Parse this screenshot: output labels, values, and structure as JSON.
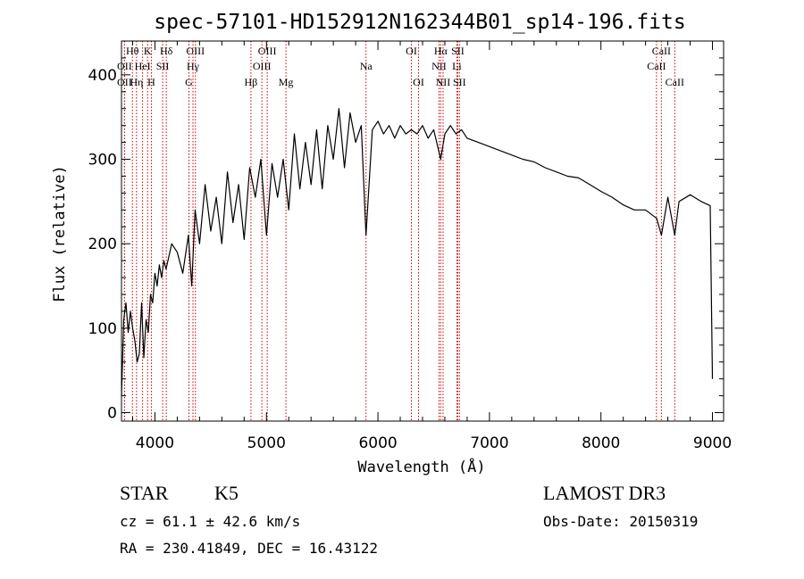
{
  "title": "spec-57101-HD152912N162344B01_sp14-196.fits",
  "info": {
    "class": "STAR",
    "subclass": "K5",
    "survey": "LAMOST DR3",
    "cz": "cz = 61.1 ± 42.6 km/s",
    "obsdate": "Obs-Date: 20150319",
    "radec": "RA = 230.41849, DEC =  16.43122"
  },
  "chart_data": {
    "type": "line",
    "title": "spec-57101-HD152912N162344B01_sp14-196.fits",
    "xlabel": "Wavelength (Å)",
    "ylabel": "Flux (relative)",
    "xlim": [
      3700,
      9100
    ],
    "ylim": [
      -10,
      440
    ],
    "xticks": [
      "4000",
      "5000",
      "6000",
      "7000",
      "8000",
      "9000"
    ],
    "yticks": [
      "0",
      "100",
      "200",
      "300",
      "400"
    ],
    "line_color": "#cc0000",
    "series": [
      {
        "color": "#000000",
        "x": [
          3700,
          3720,
          3740,
          3760,
          3780,
          3800,
          3820,
          3840,
          3860,
          3880,
          3900,
          3920,
          3940,
          3960,
          3980,
          4000,
          4020,
          4040,
          4060,
          4080,
          4100,
          4150,
          4200,
          4250,
          4300,
          4330,
          4360,
          4400,
          4450,
          4500,
          4550,
          4600,
          4650,
          4700,
          4750,
          4800,
          4850,
          4900,
          4950,
          5000,
          5050,
          5100,
          5150,
          5200,
          5250,
          5300,
          5350,
          5400,
          5450,
          5500,
          5550,
          5600,
          5650,
          5700,
          5750,
          5800,
          5850,
          5893,
          5950,
          6000,
          6050,
          6100,
          6150,
          6200,
          6250,
          6300,
          6350,
          6400,
          6450,
          6500,
          6563,
          6600,
          6650,
          6700,
          6750,
          6800,
          6900,
          7000,
          7100,
          7200,
          7300,
          7400,
          7500,
          7600,
          7700,
          7800,
          7900,
          8000,
          8100,
          8200,
          8300,
          8400,
          8500,
          8542,
          8600,
          8662,
          8700,
          8800,
          8900,
          8980,
          9000
        ],
        "y": [
          20,
          110,
          130,
          95,
          120,
          100,
          85,
          60,
          70,
          130,
          65,
          110,
          95,
          140,
          130,
          165,
          150,
          175,
          160,
          180,
          170,
          200,
          190,
          165,
          210,
          150,
          240,
          200,
          270,
          215,
          255,
          200,
          285,
          225,
          270,
          205,
          290,
          255,
          300,
          210,
          295,
          255,
          300,
          240,
          330,
          265,
          320,
          270,
          335,
          265,
          340,
          300,
          360,
          290,
          355,
          320,
          340,
          210,
          335,
          345,
          330,
          340,
          325,
          340,
          330,
          335,
          330,
          340,
          325,
          335,
          300,
          330,
          340,
          330,
          335,
          325,
          320,
          315,
          310,
          305,
          300,
          297,
          290,
          285,
          280,
          278,
          270,
          262,
          255,
          246,
          240,
          240,
          230,
          210,
          255,
          210,
          250,
          258,
          250,
          245,
          40
        ]
      }
    ],
    "lines": [
      {
        "label": "Hθ",
        "wave": 3798,
        "row": 0
      },
      {
        "label": "OII",
        "wave": 3727,
        "row": 1
      },
      {
        "label": "OII",
        "wave": 3727,
        "row": 2
      },
      {
        "label": "Hη",
        "wave": 3835,
        "row": 2
      },
      {
        "label": "K",
        "wave": 3934,
        "row": 0
      },
      {
        "label": "HeI",
        "wave": 3889,
        "row": 1
      },
      {
        "label": "H",
        "wave": 3968,
        "row": 2
      },
      {
        "label": "SII",
        "wave": 4069,
        "row": 1
      },
      {
        "label": "Hδ",
        "wave": 4102,
        "row": 0
      },
      {
        "label": "OIII",
        "wave": 4363,
        "row": 0
      },
      {
        "label": "Hγ",
        "wave": 4341,
        "row": 1
      },
      {
        "label": "G",
        "wave": 4305,
        "row": 2
      },
      {
        "label": "Hβ",
        "wave": 4861,
        "row": 2
      },
      {
        "label": "OIII",
        "wave": 5007,
        "row": 0
      },
      {
        "label": "OIII",
        "wave": 4959,
        "row": 1
      },
      {
        "label": "Mg",
        "wave": 5175,
        "row": 2
      },
      {
        "label": "Na",
        "wave": 5893,
        "row": 1
      },
      {
        "label": "OI",
        "wave": 6300,
        "row": 0
      },
      {
        "label": "OI",
        "wave": 6364,
        "row": 2
      },
      {
        "label": "Hα",
        "wave": 6563,
        "row": 0
      },
      {
        "label": "SII",
        "wave": 6716,
        "row": 0
      },
      {
        "label": "NII",
        "wave": 6548,
        "row": 1
      },
      {
        "label": "Li",
        "wave": 6708,
        "row": 1
      },
      {
        "label": "NII",
        "wave": 6584,
        "row": 2
      },
      {
        "label": "SII",
        "wave": 6731,
        "row": 2
      },
      {
        "label": "CaII",
        "wave": 8542,
        "row": 0
      },
      {
        "label": "CaII",
        "wave": 8498,
        "row": 1
      },
      {
        "label": "CaII",
        "wave": 8662,
        "row": 2
      }
    ]
  }
}
